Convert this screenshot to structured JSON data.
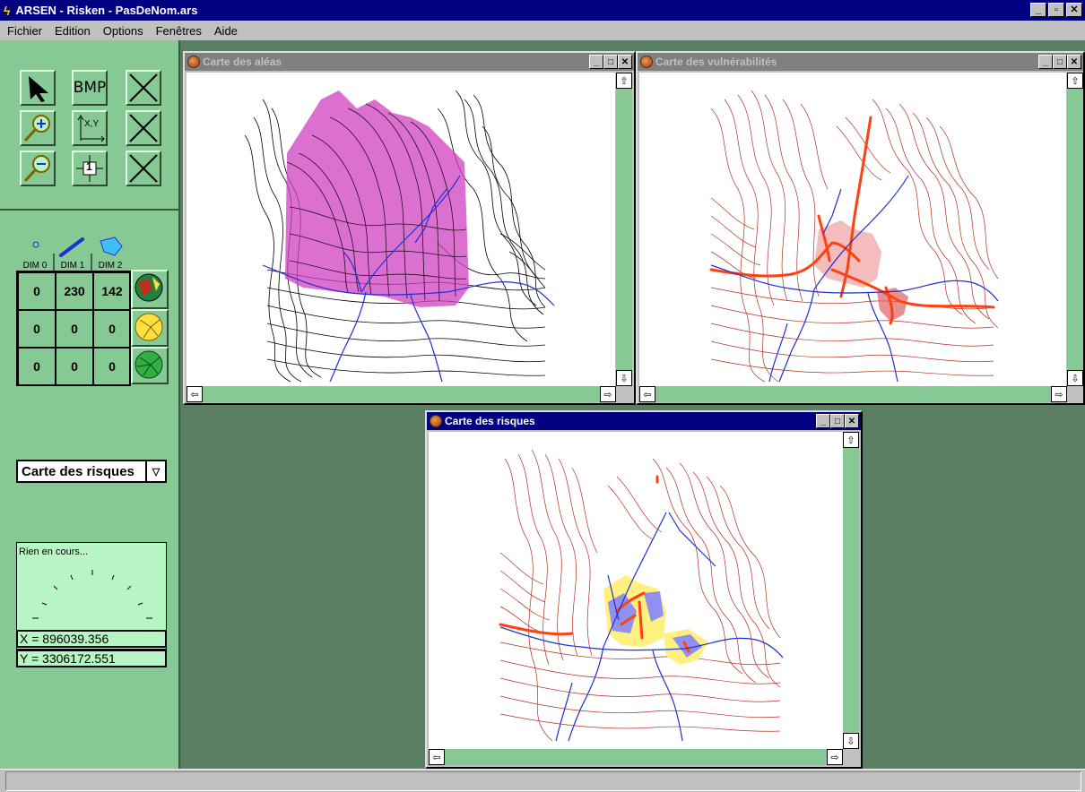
{
  "app": {
    "title": "ARSEN - Risken - PasDeNom.ars",
    "window_buttons": [
      "_",
      "▫",
      "✕"
    ]
  },
  "menu": [
    "Fichier",
    "Edition",
    "Options",
    "Fenêtres",
    "Aide"
  ],
  "toolbox": {
    "bmp_label": "BMP",
    "xy_label": "X,Y",
    "layer_num": "1"
  },
  "dims": {
    "headers": [
      "DIM 0",
      "DIM 1",
      "DIM 2"
    ],
    "rows": [
      [
        "0",
        "230",
        "142"
      ],
      [
        "0",
        "0",
        "0"
      ],
      [
        "0",
        "0",
        "0"
      ]
    ]
  },
  "map_selector": {
    "value": "Carte des risques"
  },
  "progress": {
    "label": "Rien en cours..."
  },
  "coords": {
    "x": "X = 896039.356",
    "y": "Y = 3306172.551"
  },
  "windows": {
    "aleas": {
      "title": "Carte des aléas"
    },
    "vulnerabilites": {
      "title": "Carte des vulnérabilités"
    },
    "risques": {
      "title": "Carte des risques"
    }
  },
  "colors": {
    "panel": "#86c995",
    "mdi_bg": "#5a7e62",
    "active_title": "#000080",
    "inactive_title": "#808080",
    "aleas_fill": "#d040c0",
    "contour_red": "#b03020",
    "river": "#2030d0",
    "road": "#ff4010",
    "risk_yellow": "#fff080",
    "risk_blue": "#9090f0"
  },
  "scroll_arrows": {
    "up": "⇧",
    "down": "⇩",
    "left": "⇦",
    "right": "⇨"
  }
}
